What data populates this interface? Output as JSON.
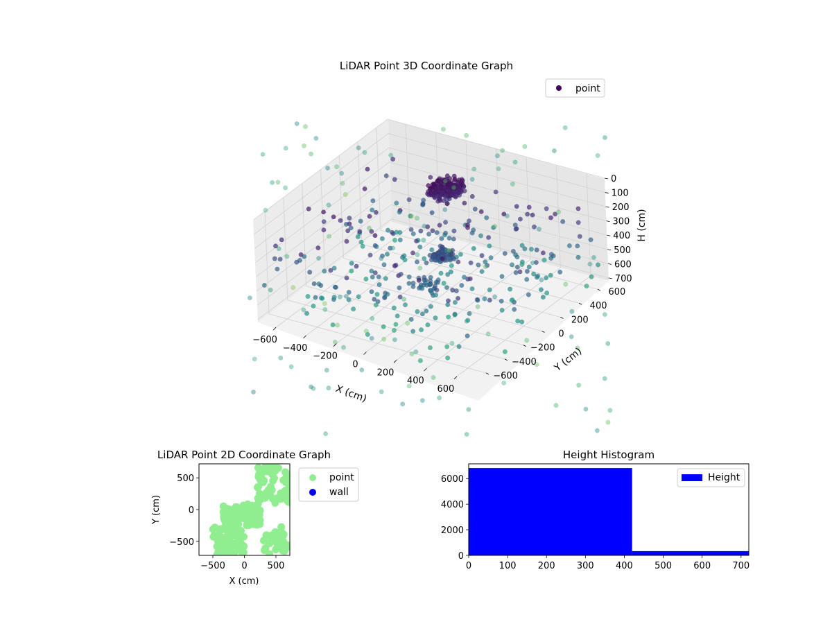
{
  "colors": {
    "dense_cluster": "#44045a",
    "point2d": "#90ee90",
    "wall": "#0000ff",
    "hist": "#0000ff",
    "pane": "#f2f2f2",
    "grid": "#d6d6d6"
  },
  "chart_data": [
    {
      "type": "scatter",
      "title": "LiDAR Point 3D Coordinate Graph",
      "xlabel": "X (cm)",
      "ylabel": "Y (cm)",
      "zlabel": "H (cm)",
      "xticks": [
        -600,
        -400,
        -200,
        0,
        200,
        400,
        600
      ],
      "yticks": [
        -600,
        -400,
        -200,
        0,
        200,
        400,
        600
      ],
      "zticks": [
        0,
        100,
        200,
        300,
        400,
        500,
        600,
        700
      ],
      "xlim": [
        -720,
        720
      ],
      "ylim": [
        -720,
        720
      ],
      "zlim": [
        0,
        720
      ],
      "zinverted": true,
      "colormap": "viridis",
      "grid": true,
      "legend": {
        "placement": "top-right",
        "entries": [
          "point"
        ]
      },
      "clusters": [
        {
          "x": [
            -220,
            -80
          ],
          "y": [
            320,
            520
          ],
          "z": [
            130,
            230
          ],
          "count": 220
        },
        {
          "x": [
            30,
            140
          ],
          "y": [
            -80,
            40
          ],
          "z": [
            330,
            390
          ],
          "count": 70
        },
        {
          "x": [
            40,
            200
          ],
          "y": [
            -320,
            -180
          ],
          "z": [
            420,
            470
          ],
          "count": 25
        }
      ],
      "scattered_points": 300,
      "far_points": 120
    },
    {
      "type": "scatter",
      "title": "LiDAR Point 2D Coordinate Graph",
      "xlabel": "X (cm)",
      "ylabel": "Y (cm)",
      "xticks": [
        -500,
        0,
        500
      ],
      "yticks": [
        -500,
        0,
        500
      ],
      "xlim": [
        -720,
        720
      ],
      "ylim": [
        -720,
        720
      ],
      "legend": {
        "placement": "outside-right",
        "entries": [
          "point",
          "wall"
        ]
      },
      "series": [
        {
          "name": "point",
          "color": "#90ee90"
        },
        {
          "name": "wall",
          "color": "#0000ff"
        }
      ]
    },
    {
      "type": "bar",
      "title": "Height Histogram",
      "xticks": [
        0,
        100,
        200,
        300,
        400,
        500,
        600,
        700
      ],
      "yticks": [
        0,
        2000,
        4000,
        6000
      ],
      "xlim": [
        0,
        720
      ],
      "ylim": [
        0,
        7150
      ],
      "legend": {
        "placement": "top-right",
        "entries": [
          "Height"
        ]
      },
      "bins": [
        {
          "from": 0,
          "to": 420,
          "value": 6820
        },
        {
          "from": 420,
          "to": 720,
          "value": 330
        }
      ]
    }
  ]
}
